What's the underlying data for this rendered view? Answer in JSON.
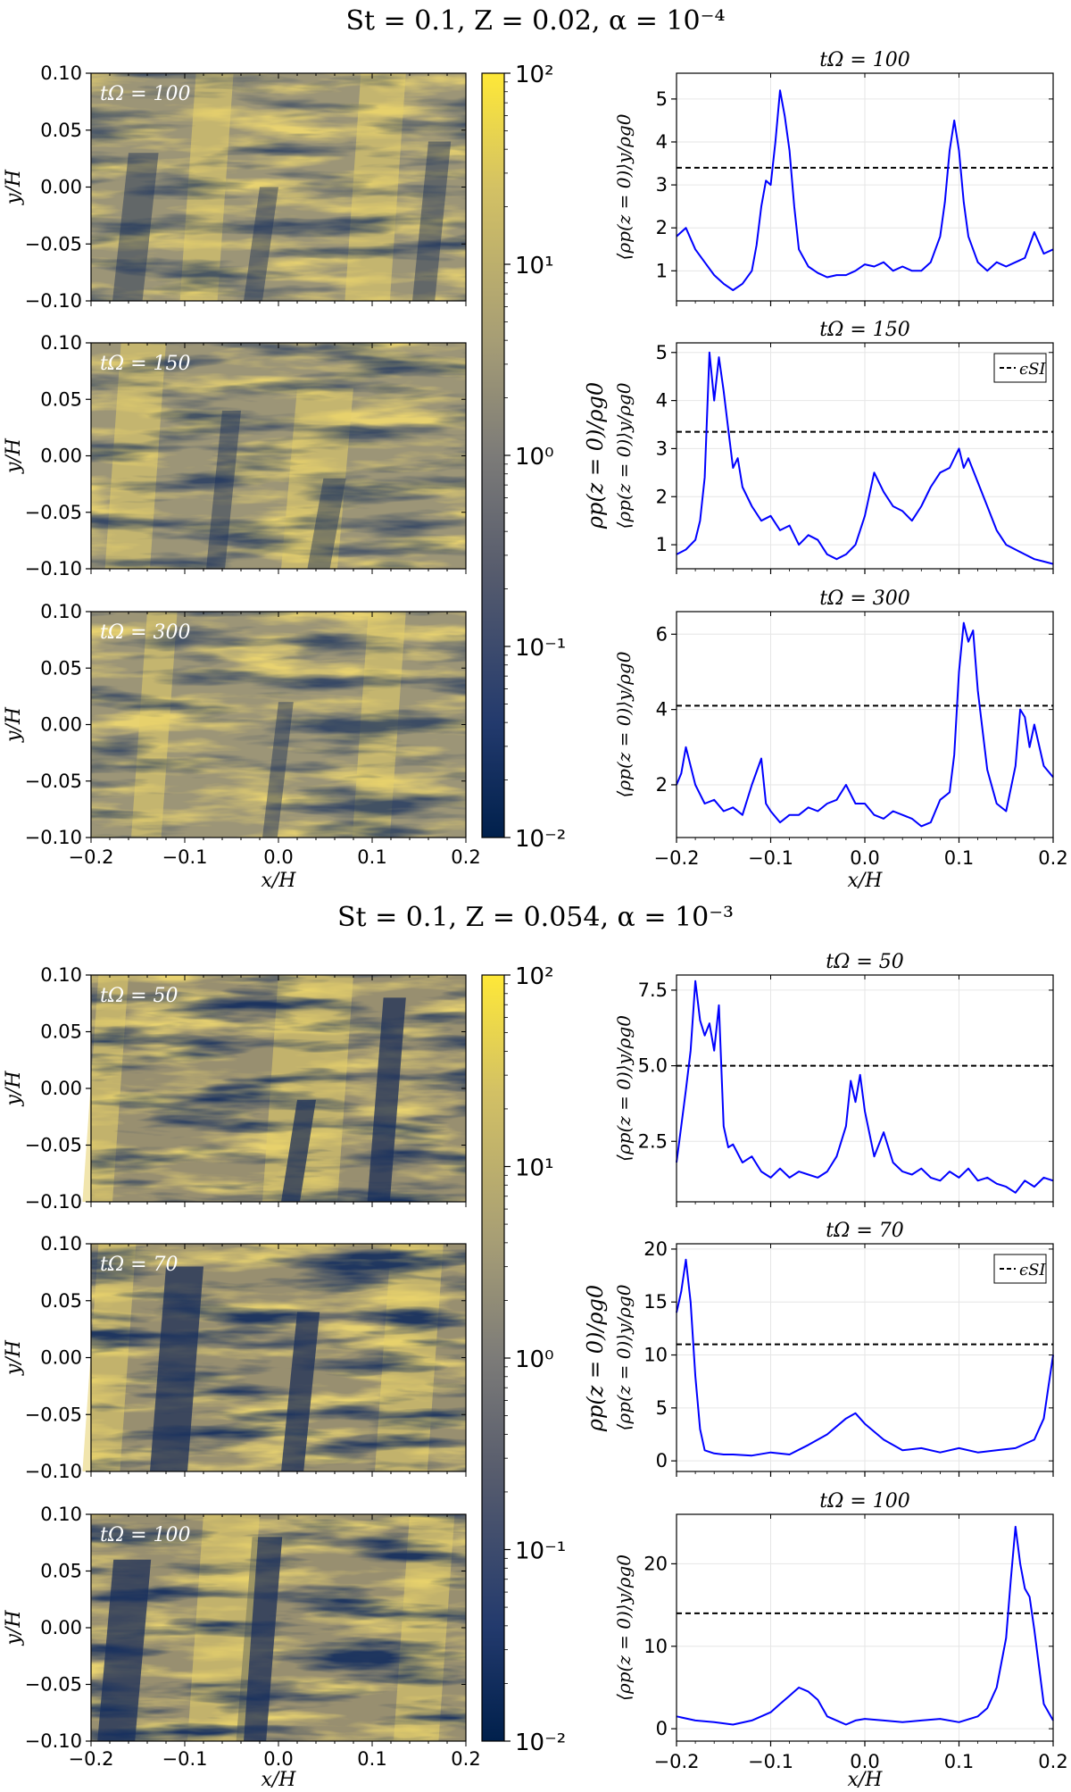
{
  "figure": {
    "sections": [
      {
        "title": "St = 0.1,   Z = 0.02,  α = 10⁻⁴",
        "maps": [
          {
            "label": "tΩ = 100"
          },
          {
            "label": "tΩ = 150"
          },
          {
            "label": "tΩ = 300"
          }
        ],
        "map_ylabel": "y/H",
        "map_xlabel": "x/H",
        "map_yticks": [
          "0.10",
          "0.05",
          "0.00",
          "−0.05",
          "−0.10"
        ],
        "map_xticks": [
          "−0.2",
          "−0.1",
          "0.0",
          "0.1",
          "0.2"
        ],
        "colorbar": {
          "label": "ρp(z = 0)/ρg0",
          "ticks": [
            "10²",
            "10¹",
            "10⁰",
            "10⁻¹",
            "10⁻²"
          ]
        },
        "profiles": [
          {
            "title": "tΩ = 100",
            "ylabel": "⟨ρp(z = 0)⟩y/ρg0",
            "yticks": [
              "5",
              "4",
              "3",
              "2",
              "1"
            ],
            "legend": ""
          },
          {
            "title": "tΩ = 150",
            "ylabel": "⟨ρp(z = 0)⟩y/ρg0",
            "yticks": [
              "5",
              "4",
              "3",
              "2",
              "1"
            ],
            "legend": "ϵSI"
          },
          {
            "title": "tΩ = 300",
            "ylabel": "⟨ρp(z = 0)⟩y/ρg0",
            "yticks": [
              "6",
              "4",
              "2"
            ],
            "legend": ""
          }
        ],
        "profile_xticks": [
          "−0.2",
          "−0.1",
          "0.0",
          "0.1",
          "0.2"
        ],
        "profile_xlabel": "x/H"
      },
      {
        "title": "St = 0.1,   Z = 0.054,  α = 10⁻³",
        "maps": [
          {
            "label": "tΩ = 50"
          },
          {
            "label": "tΩ = 70"
          },
          {
            "label": "tΩ = 100"
          }
        ],
        "map_ylabel": "y/H",
        "map_xlabel": "x/H",
        "map_yticks": [
          "0.10",
          "0.05",
          "0.00",
          "−0.05",
          "−0.10"
        ],
        "map_xticks": [
          "−0.2",
          "−0.1",
          "0.0",
          "0.1",
          "0.2"
        ],
        "colorbar": {
          "label": "ρp(z = 0)/ρg0",
          "ticks": [
            "10²",
            "10¹",
            "10⁰",
            "10⁻¹",
            "10⁻²"
          ]
        },
        "profiles": [
          {
            "title": "tΩ = 50",
            "ylabel": "⟨ρp(z = 0)⟩y/ρg0",
            "yticks": [
              "7.5",
              "5.0",
              "2.5"
            ],
            "legend": ""
          },
          {
            "title": "tΩ = 70",
            "ylabel": "⟨ρp(z = 0)⟩y/ρg0",
            "yticks": [
              "20",
              "15",
              "10",
              "5",
              "0"
            ],
            "legend": "ϵSI"
          },
          {
            "title": "tΩ = 100",
            "ylabel": "⟨ρp(z = 0)⟩y/ρg0",
            "yticks": [
              "20",
              "10",
              "0"
            ],
            "legend": ""
          }
        ],
        "profile_xticks": [
          "−0.2",
          "−0.1",
          "0.0",
          "0.1",
          "0.2"
        ],
        "profile_xlabel": "x/H"
      }
    ],
    "colors": {
      "line": "#0000ff",
      "threshold": "#000000",
      "cmap_low": "#00204c",
      "cmap_mid": "#7c7b78",
      "cmap_high": "#fee838"
    }
  },
  "chart_data": [
    {
      "type": "heatmap",
      "title": "St = 0.1, Z = 0.02, α = 10⁻⁴",
      "panels": [
        "tΩ = 100",
        "tΩ = 150",
        "tΩ = 300"
      ],
      "xlabel": "x/H",
      "ylabel": "y/H",
      "xlim": [
        -0.2,
        0.2
      ],
      "ylim": [
        -0.1,
        0.1
      ],
      "colorbar": {
        "label": "ρp(z = 0)/ρg0",
        "scale": "log",
        "range": [
          0.01,
          100
        ],
        "colormap": "cividis"
      }
    },
    {
      "type": "line",
      "title": "tΩ = 100",
      "xlabel": "x/H",
      "ylabel": "⟨ρp(z = 0)⟩y/ρg0",
      "xlim": [
        -0.2,
        0.2
      ],
      "ylim": [
        0.3,
        5.6
      ],
      "grid": true,
      "threshold": 3.4,
      "x": [
        -0.2,
        -0.19,
        -0.18,
        -0.17,
        -0.16,
        -0.15,
        -0.14,
        -0.13,
        -0.12,
        -0.115,
        -0.11,
        -0.105,
        -0.1,
        -0.095,
        -0.09,
        -0.085,
        -0.08,
        -0.075,
        -0.07,
        -0.06,
        -0.05,
        -0.04,
        -0.03,
        -0.02,
        -0.01,
        0.0,
        0.01,
        0.02,
        0.03,
        0.04,
        0.05,
        0.06,
        0.07,
        0.08,
        0.085,
        0.09,
        0.095,
        0.1,
        0.105,
        0.11,
        0.12,
        0.13,
        0.14,
        0.15,
        0.16,
        0.17,
        0.18,
        0.19,
        0.2
      ],
      "series": [
        {
          "values": [
            1.8,
            2.0,
            1.5,
            1.2,
            0.9,
            0.7,
            0.55,
            0.7,
            1.0,
            1.6,
            2.5,
            3.1,
            3.0,
            4.0,
            5.2,
            4.6,
            3.8,
            2.5,
            1.5,
            1.1,
            0.95,
            0.85,
            0.9,
            0.9,
            1.0,
            1.15,
            1.1,
            1.2,
            1.0,
            1.1,
            1.0,
            1.0,
            1.2,
            1.8,
            2.6,
            3.8,
            4.5,
            3.8,
            2.6,
            1.8,
            1.2,
            1.0,
            1.2,
            1.1,
            1.2,
            1.3,
            1.9,
            1.4,
            1.5
          ]
        }
      ]
    },
    {
      "type": "line",
      "title": "tΩ = 150",
      "xlabel": "x/H",
      "ylabel": "⟨ρp(z = 0)⟩y/ρg0",
      "xlim": [
        -0.2,
        0.2
      ],
      "ylim": [
        0.5,
        5.2
      ],
      "grid": true,
      "threshold": 3.35,
      "legend": [
        "ϵSI"
      ],
      "legend_position": "top-right",
      "x": [
        -0.2,
        -0.19,
        -0.18,
        -0.175,
        -0.17,
        -0.165,
        -0.16,
        -0.155,
        -0.15,
        -0.145,
        -0.14,
        -0.135,
        -0.13,
        -0.12,
        -0.11,
        -0.1,
        -0.09,
        -0.08,
        -0.07,
        -0.06,
        -0.05,
        -0.04,
        -0.03,
        -0.02,
        -0.01,
        0.0,
        0.01,
        0.02,
        0.03,
        0.04,
        0.05,
        0.06,
        0.07,
        0.08,
        0.09,
        0.1,
        0.105,
        0.11,
        0.12,
        0.13,
        0.14,
        0.15,
        0.16,
        0.17,
        0.18,
        0.19,
        0.2
      ],
      "series": [
        {
          "values": [
            0.8,
            0.9,
            1.1,
            1.5,
            2.4,
            5.0,
            4.0,
            4.9,
            4.2,
            3.4,
            2.6,
            2.8,
            2.2,
            1.8,
            1.5,
            1.6,
            1.3,
            1.4,
            1.0,
            1.2,
            1.1,
            0.8,
            0.7,
            0.8,
            1.0,
            1.6,
            2.5,
            2.1,
            1.8,
            1.7,
            1.5,
            1.8,
            2.2,
            2.5,
            2.6,
            3.0,
            2.6,
            2.8,
            2.3,
            1.8,
            1.3,
            1.0,
            0.9,
            0.8,
            0.7,
            0.65,
            0.6
          ]
        }
      ]
    },
    {
      "type": "line",
      "title": "tΩ = 300",
      "xlabel": "x/H",
      "ylabel": "⟨ρp(z = 0)⟩y/ρg0",
      "xlim": [
        -0.2,
        0.2
      ],
      "ylim": [
        0.6,
        6.6
      ],
      "grid": true,
      "threshold": 4.1,
      "x": [
        -0.2,
        -0.195,
        -0.19,
        -0.18,
        -0.17,
        -0.16,
        -0.15,
        -0.14,
        -0.13,
        -0.12,
        -0.11,
        -0.105,
        -0.1,
        -0.09,
        -0.08,
        -0.07,
        -0.06,
        -0.05,
        -0.04,
        -0.03,
        -0.02,
        -0.01,
        0.0,
        0.01,
        0.02,
        0.03,
        0.04,
        0.05,
        0.06,
        0.07,
        0.08,
        0.09,
        0.095,
        0.1,
        0.105,
        0.11,
        0.115,
        0.12,
        0.13,
        0.14,
        0.15,
        0.16,
        0.165,
        0.17,
        0.175,
        0.18,
        0.19,
        0.2
      ],
      "series": [
        {
          "values": [
            2.0,
            2.3,
            3.0,
            2.0,
            1.5,
            1.6,
            1.3,
            1.4,
            1.2,
            2.0,
            2.7,
            1.5,
            1.3,
            1.0,
            1.2,
            1.2,
            1.4,
            1.3,
            1.5,
            1.6,
            2.0,
            1.5,
            1.5,
            1.2,
            1.1,
            1.3,
            1.2,
            1.1,
            0.9,
            1.0,
            1.6,
            1.8,
            2.8,
            5.0,
            6.3,
            5.8,
            6.1,
            4.5,
            2.4,
            1.5,
            1.3,
            2.5,
            4.0,
            3.8,
            3.0,
            3.6,
            2.5,
            2.2
          ]
        }
      ]
    },
    {
      "type": "heatmap",
      "title": "St = 0.1, Z = 0.054, α = 10⁻³",
      "panels": [
        "tΩ = 50",
        "tΩ = 70",
        "tΩ = 100"
      ],
      "xlabel": "x/H",
      "ylabel": "y/H",
      "xlim": [
        -0.2,
        0.2
      ],
      "ylim": [
        -0.1,
        0.1
      ],
      "colorbar": {
        "label": "ρp(z = 0)/ρg0",
        "scale": "log",
        "range": [
          0.01,
          100
        ],
        "colormap": "cividis"
      }
    },
    {
      "type": "line",
      "title": "tΩ = 50",
      "xlabel": "x/H",
      "ylabel": "⟨ρp(z = 0)⟩y/ρg0",
      "xlim": [
        -0.2,
        0.2
      ],
      "ylim": [
        0.5,
        8.0
      ],
      "grid": true,
      "threshold": 5.0,
      "x": [
        -0.2,
        -0.195,
        -0.19,
        -0.185,
        -0.18,
        -0.175,
        -0.17,
        -0.165,
        -0.16,
        -0.155,
        -0.15,
        -0.145,
        -0.14,
        -0.13,
        -0.12,
        -0.11,
        -0.1,
        -0.09,
        -0.08,
        -0.07,
        -0.06,
        -0.05,
        -0.04,
        -0.03,
        -0.02,
        -0.015,
        -0.01,
        -0.005,
        0.0,
        0.01,
        0.02,
        0.03,
        0.04,
        0.05,
        0.06,
        0.07,
        0.08,
        0.09,
        0.1,
        0.11,
        0.12,
        0.13,
        0.14,
        0.15,
        0.16,
        0.17,
        0.18,
        0.19,
        0.2
      ],
      "series": [
        {
          "values": [
            1.8,
            3.0,
            4.2,
            5.5,
            7.8,
            6.5,
            6.0,
            6.4,
            5.5,
            7.0,
            3.0,
            2.3,
            2.4,
            1.8,
            2.0,
            1.5,
            1.3,
            1.6,
            1.3,
            1.5,
            1.4,
            1.3,
            1.5,
            2.0,
            3.0,
            4.5,
            3.8,
            4.7,
            3.5,
            2.0,
            2.8,
            1.8,
            1.5,
            1.4,
            1.6,
            1.3,
            1.2,
            1.5,
            1.3,
            1.6,
            1.2,
            1.3,
            1.1,
            1.0,
            0.8,
            1.2,
            1.0,
            1.3,
            1.2
          ]
        }
      ]
    },
    {
      "type": "line",
      "title": "tΩ = 70",
      "xlabel": "x/H",
      "ylabel": "⟨ρp(z = 0)⟩y/ρg0",
      "xlim": [
        -0.2,
        0.2
      ],
      "ylim": [
        -1.0,
        20.5
      ],
      "grid": true,
      "threshold": 11.0,
      "legend": [
        "ϵSI"
      ],
      "legend_position": "top-right",
      "x": [
        -0.2,
        -0.195,
        -0.19,
        -0.185,
        -0.18,
        -0.175,
        -0.17,
        -0.16,
        -0.15,
        -0.14,
        -0.12,
        -0.1,
        -0.08,
        -0.06,
        -0.04,
        -0.02,
        -0.01,
        0.0,
        0.02,
        0.04,
        0.06,
        0.08,
        0.1,
        0.12,
        0.14,
        0.16,
        0.18,
        0.19,
        0.195,
        0.2
      ],
      "series": [
        {
          "values": [
            14.0,
            16.0,
            19.0,
            15.0,
            8.0,
            3.0,
            1.0,
            0.7,
            0.6,
            0.6,
            0.5,
            0.8,
            0.6,
            1.5,
            2.5,
            4.0,
            4.5,
            3.5,
            2.0,
            1.0,
            1.2,
            0.8,
            1.2,
            0.8,
            1.0,
            1.2,
            2.0,
            4.0,
            7.0,
            10.0
          ]
        }
      ]
    },
    {
      "type": "line",
      "title": "tΩ = 100",
      "xlabel": "x/H",
      "ylabel": "⟨ρp(z = 0)⟩y/ρg0",
      "xlim": [
        -0.2,
        0.2
      ],
      "ylim": [
        -1.5,
        26.0
      ],
      "grid": true,
      "threshold": 14.0,
      "x": [
        -0.2,
        -0.18,
        -0.16,
        -0.14,
        -0.12,
        -0.1,
        -0.09,
        -0.08,
        -0.07,
        -0.06,
        -0.05,
        -0.04,
        -0.03,
        -0.02,
        -0.01,
        0.0,
        0.02,
        0.04,
        0.06,
        0.08,
        0.1,
        0.12,
        0.13,
        0.14,
        0.15,
        0.155,
        0.16,
        0.165,
        0.17,
        0.175,
        0.18,
        0.19,
        0.2
      ],
      "series": [
        {
          "values": [
            1.5,
            1.0,
            0.8,
            0.5,
            1.0,
            2.0,
            3.0,
            4.0,
            5.0,
            4.5,
            3.5,
            1.5,
            1.0,
            0.5,
            1.0,
            1.2,
            1.0,
            0.8,
            1.0,
            1.2,
            0.8,
            1.5,
            2.5,
            5.0,
            11.0,
            18.0,
            24.5,
            20.0,
            17.0,
            16.0,
            12.0,
            3.0,
            1.0
          ]
        }
      ]
    }
  ]
}
